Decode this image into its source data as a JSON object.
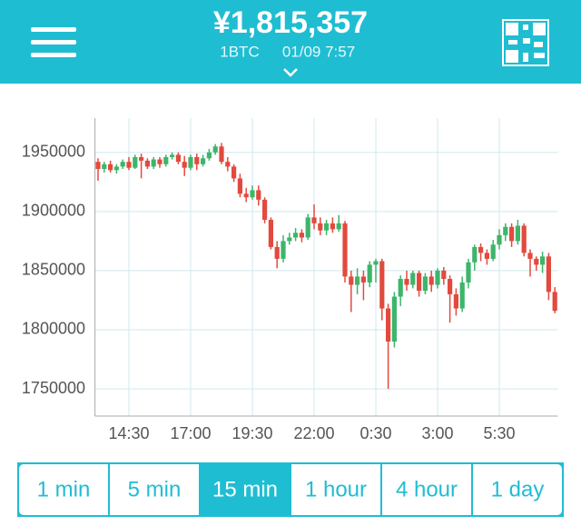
{
  "header": {
    "price": "¥1,815,357",
    "unit": "1BTC",
    "timestamp": "01/09 7:57"
  },
  "chart_data": {
    "type": "candlestick",
    "categories": [
      null,
      null,
      null,
      null,
      null,
      "14:30",
      null,
      null,
      null,
      null,
      null,
      null,
      null,
      null,
      null,
      "17:00",
      null,
      null,
      null,
      null,
      null,
      null,
      null,
      null,
      null,
      "19:30",
      null,
      null,
      null,
      null,
      null,
      null,
      null,
      null,
      null,
      "22:00",
      null,
      null,
      null,
      null,
      null,
      null,
      null,
      null,
      null,
      "0:30",
      null,
      null,
      null,
      null,
      null,
      null,
      null,
      null,
      null,
      "3:00",
      null,
      null,
      null,
      null,
      null,
      null,
      null,
      null,
      null,
      "5:30",
      null,
      null,
      null,
      null,
      null,
      null,
      null,
      null,
      null
    ],
    "open": [
      1942000,
      1936000,
      1940000,
      1935000,
      1938000,
      1942000,
      1937000,
      1946000,
      1943000,
      1938000,
      1944000,
      1940000,
      1946000,
      1948000,
      1942000,
      1937000,
      1946000,
      1940000,
      1945000,
      1950000,
      1955000,
      1942000,
      1938000,
      1928000,
      1915000,
      1912000,
      1918000,
      1910000,
      1893000,
      1870000,
      1860000,
      1875000,
      1878000,
      1882000,
      1878000,
      1895000,
      1890000,
      1884000,
      1890000,
      1885000,
      1890000,
      1845000,
      1838000,
      1845000,
      1840000,
      1855000,
      1858000,
      1818000,
      1790000,
      1828000,
      1843000,
      1838000,
      1848000,
      1833000,
      1845000,
      1838000,
      1850000,
      1843000,
      1830000,
      1818000,
      1840000,
      1857000,
      1870000,
      1865000,
      1860000,
      1872000,
      1880000,
      1887000,
      1875000,
      1888000,
      1865000,
      1860000,
      1855000,
      1862000,
      1832000
    ],
    "high": [
      1945000,
      1942000,
      1943000,
      1940000,
      1944000,
      1946000,
      1948000,
      1949000,
      1945000,
      1946000,
      1946000,
      1948000,
      1950000,
      1950000,
      1947000,
      1948000,
      1949000,
      1948000,
      1953000,
      1957000,
      1958000,
      1946000,
      1940000,
      1932000,
      1920000,
      1922000,
      1922000,
      1912000,
      1895000,
      1875000,
      1880000,
      1882000,
      1886000,
      1885000,
      1898000,
      1906000,
      1895000,
      1893000,
      1895000,
      1897000,
      1892000,
      1850000,
      1852000,
      1850000,
      1858000,
      1860000,
      1860000,
      1822000,
      1832000,
      1846000,
      1850000,
      1850000,
      1850000,
      1848000,
      1850000,
      1852000,
      1853000,
      1846000,
      1835000,
      1845000,
      1860000,
      1872000,
      1873000,
      1868000,
      1876000,
      1885000,
      1890000,
      1890000,
      1893000,
      1890000,
      1868000,
      1862000,
      1866000,
      1865000,
      1836000
    ],
    "low": [
      1926000,
      1933000,
      1933000,
      1932000,
      1936000,
      1935000,
      1936000,
      1928000,
      1936000,
      1936000,
      1937000,
      1938000,
      1944000,
      1940000,
      1930000,
      1935000,
      1935000,
      1938000,
      1943000,
      1948000,
      1940000,
      1934000,
      1925000,
      1912000,
      1908000,
      1910000,
      1905000,
      1890000,
      1868000,
      1852000,
      1857000,
      1872000,
      1875000,
      1874000,
      1876000,
      1885000,
      1880000,
      1880000,
      1882000,
      1883000,
      1840000,
      1815000,
      1830000,
      1825000,
      1836000,
      1840000,
      1808000,
      1750000,
      1785000,
      1820000,
      1833000,
      1835000,
      1828000,
      1830000,
      1832000,
      1835000,
      1838000,
      1806000,
      1812000,
      1815000,
      1835000,
      1850000,
      1858000,
      1855000,
      1858000,
      1868000,
      1875000,
      1870000,
      1872000,
      1862000,
      1845000,
      1850000,
      1848000,
      1825000,
      1814000
    ],
    "close": [
      1936000,
      1940000,
      1935000,
      1938000,
      1942000,
      1937000,
      1946000,
      1943000,
      1938000,
      1944000,
      1940000,
      1946000,
      1948000,
      1942000,
      1937000,
      1946000,
      1940000,
      1945000,
      1950000,
      1955000,
      1942000,
      1938000,
      1928000,
      1915000,
      1912000,
      1918000,
      1910000,
      1893000,
      1870000,
      1860000,
      1875000,
      1878000,
      1882000,
      1878000,
      1895000,
      1890000,
      1884000,
      1890000,
      1885000,
      1890000,
      1845000,
      1838000,
      1845000,
      1840000,
      1855000,
      1858000,
      1818000,
      1790000,
      1828000,
      1843000,
      1838000,
      1848000,
      1833000,
      1845000,
      1838000,
      1850000,
      1843000,
      1830000,
      1818000,
      1840000,
      1857000,
      1870000,
      1865000,
      1860000,
      1872000,
      1880000,
      1887000,
      1875000,
      1888000,
      1865000,
      1860000,
      1855000,
      1862000,
      1832000,
      1816000
    ],
    "up_color": "#3db56b",
    "down_color": "#e24a3e",
    "ylim": [
      1727000,
      1979000
    ],
    "yticks": [
      1750000,
      1800000,
      1850000,
      1900000,
      1950000
    ],
    "grid": true
  },
  "intervals": {
    "options": [
      "1 min",
      "5 min",
      "15 min",
      "1 hour",
      "4 hour",
      "1 day"
    ],
    "active": 2
  }
}
